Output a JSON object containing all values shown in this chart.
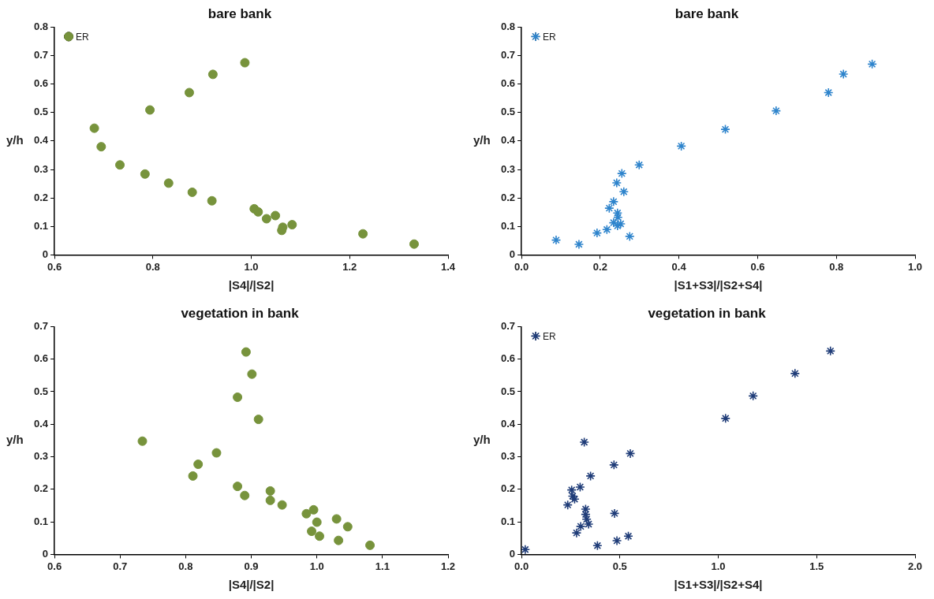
{
  "chart_data": [
    {
      "type": "scatter",
      "title": "bare bank",
      "xlabel": "|S4|/|S2|",
      "ylabel": "y/h",
      "xlim": [
        0.6,
        1.4
      ],
      "xticks": [
        0.6,
        0.8,
        {
          "value": 1.0,
          "label": "1.0"
        },
        1.2,
        1.4
      ],
      "ylim": [
        0,
        0.8
      ],
      "yticks": [
        0,
        0.1,
        0.2,
        0.3,
        0.4,
        0.5,
        0.6,
        0.7,
        0.8
      ],
      "grid": false,
      "legend": "top left",
      "marker": "circle",
      "series": [
        {
          "name": "ER",
          "color": "#77933c",
          "x": [
            0.681,
            0.695,
            0.733,
            0.784,
            0.832,
            0.88,
            0.92,
            0.794,
            0.874,
            0.922,
            0.987,
            1.006,
            1.014,
            1.031,
            1.049,
            1.064,
            1.062,
            1.083,
            1.227,
            1.331
          ],
          "values": [
            0.445,
            0.38,
            0.316,
            0.284,
            0.252,
            0.22,
            0.19,
            0.509,
            0.57,
            0.634,
            0.675,
            0.162,
            0.151,
            0.127,
            0.138,
            0.097,
            0.086,
            0.106,
            0.074,
            0.038
          ]
        }
      ]
    },
    {
      "type": "scatter",
      "title": "bare bank",
      "xlabel": "|S1+S3|/|S2+S4|",
      "ylabel": "y/h",
      "xlim": [
        0,
        1.0
      ],
      "xticks": [
        {
          "value": 0,
          "label": "0.0"
        },
        0.2,
        0.4,
        0.6,
        0.8,
        {
          "value": 1.0,
          "label": "1.0"
        }
      ],
      "ylim": [
        0,
        0.8
      ],
      "yticks": [
        0,
        0.1,
        0.2,
        0.3,
        0.4,
        0.5,
        0.6,
        0.7,
        0.8
      ],
      "grid": false,
      "legend": "top left",
      "marker": "cross",
      "series": [
        {
          "name": "ER",
          "color": "#2e84cc",
          "x": [
            0.088,
            0.146,
            0.192,
            0.217,
            0.223,
            0.234,
            0.242,
            0.255,
            0.26,
            0.244,
            0.245,
            0.234,
            0.252,
            0.244,
            0.275,
            0.299,
            0.406,
            0.518,
            0.647,
            0.78,
            0.818,
            0.891
          ],
          "values": [
            0.052,
            0.037,
            0.077,
            0.089,
            0.164,
            0.187,
            0.253,
            0.286,
            0.222,
            0.147,
            0.132,
            0.113,
            0.109,
            0.102,
            0.065,
            0.316,
            0.382,
            0.441,
            0.506,
            0.57,
            0.635,
            0.67
          ]
        }
      ]
    },
    {
      "type": "scatter",
      "title": "vegetation in bank",
      "xlabel": "|S4|/|S2|",
      "ylabel": "y/h",
      "xlim": [
        0.6,
        1.2
      ],
      "xticks": [
        0.6,
        0.7,
        0.8,
        0.9,
        {
          "value": 1.0,
          "label": "1.0"
        },
        1.1,
        1.2
      ],
      "ylim": [
        0,
        0.7
      ],
      "yticks": [
        0,
        0.1,
        0.2,
        0.3,
        0.4,
        0.5,
        0.6,
        0.7
      ],
      "grid": false,
      "marker": "circle",
      "series": [
        {
          "color": "#77933c",
          "x": [
            0.734,
            0.811,
            0.819,
            0.847,
            0.879,
            0.892,
            0.901,
            0.911,
            0.879,
            0.89,
            0.929,
            0.929,
            0.947,
            0.984,
            0.995,
            1.0,
            0.992,
            1.004,
            1.03,
            1.047,
            1.033,
            1.081
          ],
          "values": [
            0.348,
            0.241,
            0.277,
            0.312,
            0.483,
            0.622,
            0.554,
            0.415,
            0.209,
            0.181,
            0.195,
            0.166,
            0.152,
            0.125,
            0.137,
            0.099,
            0.071,
            0.056,
            0.109,
            0.085,
            0.043,
            0.028
          ]
        }
      ]
    },
    {
      "type": "scatter",
      "title": "vegetation in bank",
      "xlabel": "|S1+S3|/|S2+S4|",
      "ylabel": "y/h",
      "xlim": [
        0,
        2.0
      ],
      "xticks": [
        {
          "value": 0,
          "label": "0.0"
        },
        0.5,
        {
          "value": 1.0,
          "label": "1.0"
        },
        1.5,
        {
          "value": 2.0,
          "label": "2.0"
        }
      ],
      "ylim": [
        0,
        0.7
      ],
      "yticks": [
        0,
        0.1,
        0.2,
        0.3,
        0.4,
        0.5,
        0.6,
        0.7
      ],
      "grid": false,
      "legend": "top left",
      "marker": "cross",
      "series": [
        {
          "name": "ER",
          "color": "#1f3c78",
          "x": [
            0.019,
            0.235,
            0.255,
            0.26,
            0.27,
            0.298,
            0.28,
            0.301,
            0.319,
            0.326,
            0.326,
            0.331,
            0.341,
            0.351,
            0.386,
            0.47,
            0.473,
            0.485,
            0.543,
            0.553,
            1.037,
            1.177,
            1.39,
            1.57
          ],
          "values": [
            0.015,
            0.152,
            0.198,
            0.179,
            0.17,
            0.207,
            0.066,
            0.086,
            0.345,
            0.139,
            0.123,
            0.108,
            0.093,
            0.241,
            0.027,
            0.275,
            0.126,
            0.042,
            0.056,
            0.31,
            0.418,
            0.487,
            0.556,
            0.625
          ]
        }
      ]
    }
  ]
}
